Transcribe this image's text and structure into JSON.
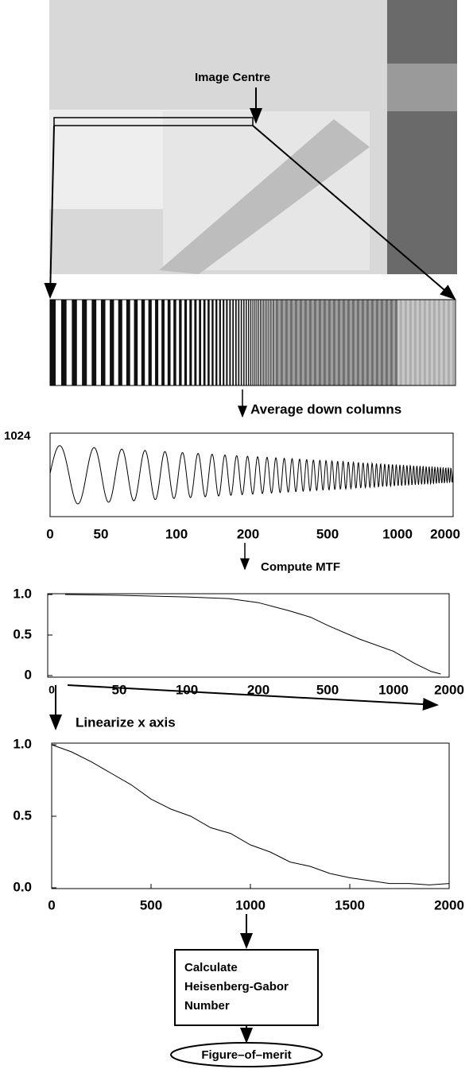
{
  "photo": {
    "label": "Image Centre"
  },
  "steps": {
    "average": "Average down columns",
    "mtf": "Compute MTF",
    "linearize": "Linearize x axis",
    "calculate": [
      "Calculate",
      "Heisenberg-Gabor",
      "Number"
    ],
    "result": "Figure–of–merit"
  },
  "plot_profile": {
    "ylabel": "1024",
    "xticks": [
      0,
      50,
      100,
      200,
      500,
      1000,
      2000
    ]
  },
  "plot_mtf_log": {
    "yticks": [
      {
        "value": 1,
        "label": "1.0"
      },
      0.5,
      0
    ],
    "ylim": [
      0,
      1
    ],
    "xticks": [
      0,
      50,
      100,
      200,
      500,
      1000,
      2000
    ],
    "x": [
      10,
      50,
      100,
      150,
      200,
      300,
      400,
      500,
      700,
      1000,
      1300,
      1600,
      1800
    ],
    "values": [
      1,
      0.99,
      0.97,
      0.95,
      0.9,
      0.8,
      0.72,
      0.62,
      0.45,
      0.3,
      0.15,
      0.05,
      0.02
    ]
  },
  "plot_mtf_lin": {
    "yticks": [
      {
        "value": 1,
        "label": "1.0"
      },
      0.5,
      {
        "value": 0,
        "label": "0.0"
      }
    ],
    "ylim": [
      0,
      1
    ],
    "xticks": [
      0,
      500,
      1000,
      1500,
      2000
    ],
    "xlim": [
      0,
      2000
    ],
    "x": [
      0,
      100,
      200,
      300,
      400,
      500,
      600,
      700,
      800,
      900,
      1000,
      1100,
      1200,
      1300,
      1400,
      1500,
      1600,
      1700,
      1800,
      1900,
      2000
    ],
    "values": [
      1,
      0.95,
      0.88,
      0.8,
      0.72,
      0.62,
      0.55,
      0.5,
      0.42,
      0.38,
      0.3,
      0.25,
      0.18,
      0.15,
      0.1,
      0.07,
      0.05,
      0.03,
      0.03,
      0.02,
      0.03
    ]
  }
}
